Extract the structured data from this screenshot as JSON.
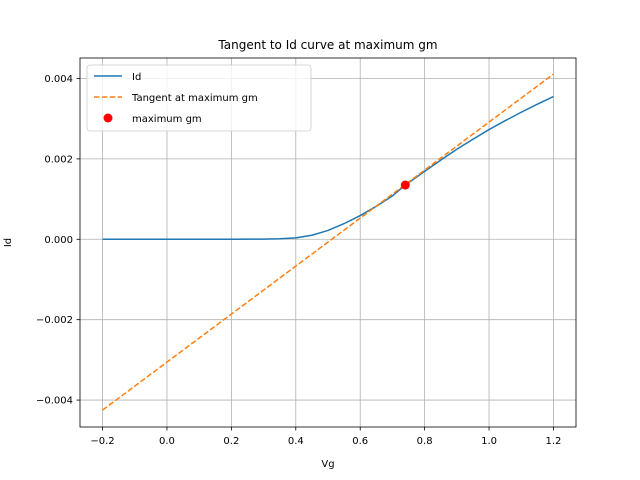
{
  "chart_data": {
    "type": "line",
    "title": "Tangent to Id curve at maximum gm",
    "xlabel": "Vg",
    "ylabel": "Id",
    "xlim": [
      -0.27,
      1.27
    ],
    "ylim": [
      -0.00467,
      0.00451
    ],
    "xticks": [
      -0.2,
      0.0,
      0.2,
      0.4,
      0.6,
      0.8,
      1.0,
      1.2
    ],
    "xtick_labels": [
      "−0.2",
      "0.0",
      "0.2",
      "0.4",
      "0.6",
      "0.8",
      "1.0",
      "1.2"
    ],
    "yticks": [
      -0.004,
      -0.002,
      0.0,
      0.002,
      0.004
    ],
    "ytick_labels": [
      "−0.004",
      "−0.002",
      "0.000",
      "0.002",
      "0.004"
    ],
    "grid": true,
    "legend_position": "top-left",
    "series": [
      {
        "name": "Id",
        "style": "solid",
        "color": "#1f77b4",
        "x": [
          -0.2,
          0.0,
          0.2,
          0.3,
          0.35,
          0.4,
          0.45,
          0.5,
          0.55,
          0.6,
          0.65,
          0.7,
          0.74,
          0.8,
          0.85,
          0.9,
          0.95,
          1.0,
          1.05,
          1.1,
          1.15,
          1.2
        ],
        "y": [
          0.0,
          0.0,
          0.0,
          5e-06,
          1.2e-05,
          3.5e-05,
          0.0001,
          0.00022,
          0.00039,
          0.00059,
          0.00082,
          0.00108,
          0.00135,
          0.00169,
          0.00197,
          0.00224,
          0.00249,
          0.00273,
          0.00295,
          0.00316,
          0.00336,
          0.00355
        ]
      },
      {
        "name": "Tangent at maximum gm",
        "style": "dashed",
        "color": "#ff7f0e",
        "x": [
          -0.2,
          1.2
        ],
        "y": [
          -0.00425,
          0.00411
        ]
      }
    ],
    "points": [
      {
        "name": "maximum gm",
        "color": "#ff0000",
        "x": 0.74,
        "y": 0.00135
      }
    ]
  }
}
